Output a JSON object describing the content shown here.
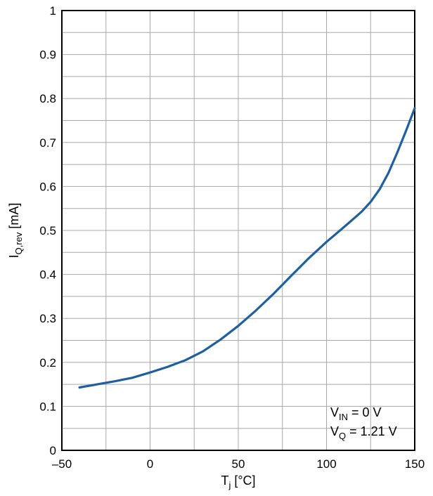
{
  "chart_data": {
    "type": "line",
    "title": "",
    "xlabel": {
      "main": "T",
      "sub": "j",
      "unit": " [°C]"
    },
    "ylabel": {
      "main": "I",
      "sub": "Q,rev",
      "unit": " [mA]"
    },
    "xlim": [
      -50,
      150
    ],
    "ylim": [
      0,
      1
    ],
    "x_ticks": [
      "–50",
      "0",
      "50",
      "100",
      "150"
    ],
    "y_ticks": [
      "0",
      "0.1",
      "0.2",
      "0.3",
      "0.4",
      "0.5",
      "0.6",
      "0.7",
      "0.8",
      "0.9",
      "1"
    ],
    "grid": true,
    "series": [
      {
        "color": "#1f5fa0",
        "x": [
          -40,
          -30,
          -20,
          -10,
          0,
          10,
          20,
          30,
          40,
          50,
          60,
          70,
          80,
          90,
          100,
          110,
          120,
          125,
          130,
          135,
          140,
          145,
          150
        ],
        "y": [
          0.143,
          0.15,
          0.157,
          0.165,
          0.177,
          0.19,
          0.205,
          0.225,
          0.252,
          0.283,
          0.318,
          0.356,
          0.397,
          0.437,
          0.474,
          0.508,
          0.543,
          0.565,
          0.593,
          0.63,
          0.676,
          0.726,
          0.778
        ]
      }
    ],
    "annotations": [
      {
        "main": "V",
        "sub": "IN",
        "rest": " = 0 V"
      },
      {
        "main": "V",
        "sub": "Q",
        "rest": " = 1.21 V"
      }
    ]
  }
}
